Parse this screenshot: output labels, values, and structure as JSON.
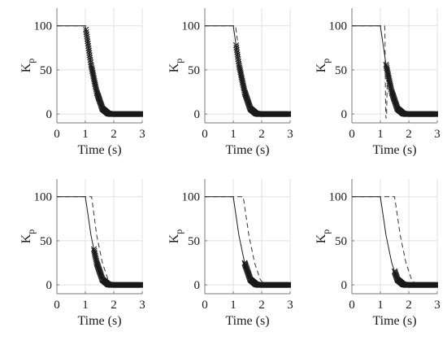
{
  "chart_data": [
    {
      "type": "line",
      "xlabel": "Time (s)",
      "ylabel_main": "K",
      "ylabel_sub": "p",
      "xlim": [
        0,
        3
      ],
      "ylim": [
        -10,
        120
      ],
      "xticks": [
        "0",
        "1",
        "2",
        "3"
      ],
      "yticks": [
        "0",
        "50",
        "100"
      ],
      "grid": true,
      "series": [
        {
          "style": "solid",
          "x": [
            0,
            1.0,
            1.2,
            1.4,
            1.6,
            1.8,
            1.9,
            3.0
          ],
          "y": [
            100,
            100,
            56,
            25,
            6,
            0.6,
            0,
            0
          ]
        },
        {
          "style": "dashed",
          "x": [
            0,
            1.02,
            1.2,
            1.4,
            1.6,
            1.8,
            1.92,
            3.0
          ],
          "y": [
            100,
            100,
            57,
            26,
            7,
            0.8,
            0,
            0
          ]
        },
        {
          "style": "markers",
          "marker": "x",
          "x_start": 1.02,
          "x_end": 3.0,
          "cut_at": 1.9,
          "spacing": 0.012
        }
      ]
    },
    {
      "type": "line",
      "xlabel": "Time (s)",
      "ylabel_main": "K",
      "ylabel_sub": "p",
      "xlim": [
        0,
        3
      ],
      "ylim": [
        -10,
        120
      ],
      "xticks": [
        "0",
        "1",
        "2",
        "3"
      ],
      "yticks": [
        "0",
        "50",
        "100"
      ],
      "grid": true,
      "series": [
        {
          "style": "solid",
          "x": [
            0,
            1.0,
            1.2,
            1.4,
            1.6,
            1.8,
            1.9,
            3.0
          ],
          "y": [
            100,
            100,
            56,
            25,
            6,
            0.6,
            0,
            0
          ]
        },
        {
          "style": "dashed",
          "x": [
            0,
            1.08,
            1.25,
            1.45,
            1.65,
            1.85,
            1.96,
            3.0
          ],
          "y": [
            100,
            100,
            58,
            26,
            7,
            0.8,
            0,
            0
          ]
        },
        {
          "style": "markers",
          "marker": "x",
          "x_start": 1.1,
          "x_end": 3.0,
          "cut_at": 1.9,
          "spacing": 0.012
        }
      ]
    },
    {
      "type": "line",
      "xlabel": "Time (s)",
      "ylabel_main": "K",
      "ylabel_sub": "p",
      "xlim": [
        0,
        3
      ],
      "ylim": [
        -10,
        120
      ],
      "xticks": [
        "0",
        "1",
        "2",
        "3"
      ],
      "yticks": [
        "0",
        "50",
        "100"
      ],
      "grid": true,
      "series": [
        {
          "style": "solid",
          "x": [
            0,
            1.0,
            1.2,
            1.4,
            1.6,
            1.8,
            1.9,
            3.0
          ],
          "y": [
            100,
            100,
            56,
            25,
            6,
            0.6,
            0,
            0
          ]
        },
        {
          "style": "dashed",
          "x": [
            0,
            1.15,
            1.16,
            1.17,
            1.18,
            1.19,
            1.2,
            1.22,
            1.25,
            1.4,
            1.6,
            1.8,
            1.95,
            3.0
          ],
          "y": [
            100,
            100,
            95,
            60,
            20,
            0,
            -5,
            0,
            55,
            35,
            10,
            1,
            0,
            0
          ]
        },
        {
          "style": "markers",
          "marker": "x",
          "x_start": 1.2,
          "x_end": 3.0,
          "cut_at": 1.9,
          "spacing": 0.012
        }
      ]
    },
    {
      "type": "line",
      "xlabel": "Time (s)",
      "ylabel_main": "K",
      "ylabel_sub": "p",
      "xlim": [
        0,
        3
      ],
      "ylim": [
        -10,
        120
      ],
      "xticks": [
        "0",
        "1",
        "2",
        "3"
      ],
      "yticks": [
        "0",
        "50",
        "100"
      ],
      "grid": true,
      "series": [
        {
          "style": "solid",
          "x": [
            0,
            1.0,
            1.2,
            1.4,
            1.6,
            1.8,
            1.9,
            3.0
          ],
          "y": [
            100,
            100,
            56,
            25,
            6,
            0.6,
            0,
            0
          ]
        },
        {
          "style": "dashed",
          "x": [
            0,
            1.22,
            1.4,
            1.6,
            1.8,
            1.95,
            2.05,
            3.0
          ],
          "y": [
            100,
            100,
            56,
            25,
            6,
            0.6,
            0,
            0
          ]
        },
        {
          "style": "markers",
          "marker": "x",
          "x_start": 1.3,
          "x_end": 3.0,
          "cut_at": 1.9,
          "spacing": 0.012
        }
      ]
    },
    {
      "type": "line",
      "xlabel": "Time (s)",
      "ylabel_main": "K",
      "ylabel_sub": "p",
      "xlim": [
        0,
        3
      ],
      "ylim": [
        -10,
        120
      ],
      "xticks": [
        "0",
        "1",
        "2",
        "3"
      ],
      "yticks": [
        "0",
        "50",
        "100"
      ],
      "grid": true,
      "series": [
        {
          "style": "solid",
          "x": [
            0,
            1.0,
            1.2,
            1.4,
            1.6,
            1.8,
            1.9,
            3.0
          ],
          "y": [
            100,
            100,
            56,
            25,
            6,
            0.6,
            0,
            0
          ]
        },
        {
          "style": "dashed",
          "x": [
            0,
            1.35,
            1.55,
            1.75,
            1.95,
            2.1,
            2.2,
            3.0
          ],
          "y": [
            100,
            100,
            56,
            25,
            6,
            0.6,
            0,
            0
          ]
        },
        {
          "style": "markers",
          "marker": "x",
          "x_start": 1.4,
          "x_end": 3.0,
          "cut_at": 1.9,
          "spacing": 0.012
        }
      ]
    },
    {
      "type": "line",
      "xlabel": "Time (s)",
      "ylabel_main": "K",
      "ylabel_sub": "p",
      "xlim": [
        0,
        3
      ],
      "ylim": [
        -10,
        120
      ],
      "xticks": [
        "0",
        "1",
        "2",
        "3"
      ],
      "yticks": [
        "0",
        "50",
        "100"
      ],
      "grid": true,
      "series": [
        {
          "style": "solid",
          "x": [
            0,
            1.0,
            1.2,
            1.4,
            1.6,
            1.8,
            1.9,
            3.0
          ],
          "y": [
            100,
            100,
            56,
            25,
            6,
            0.6,
            0,
            0
          ]
        },
        {
          "style": "dashed",
          "x": [
            0,
            1.5,
            1.7,
            1.9,
            2.1,
            2.25,
            2.35,
            3.0
          ],
          "y": [
            100,
            100,
            56,
            25,
            6,
            0.6,
            0,
            0
          ]
        },
        {
          "style": "markers",
          "marker": "x",
          "x_start": 1.5,
          "x_end": 3.0,
          "cut_at": 1.9,
          "spacing": 0.012
        }
      ]
    }
  ]
}
